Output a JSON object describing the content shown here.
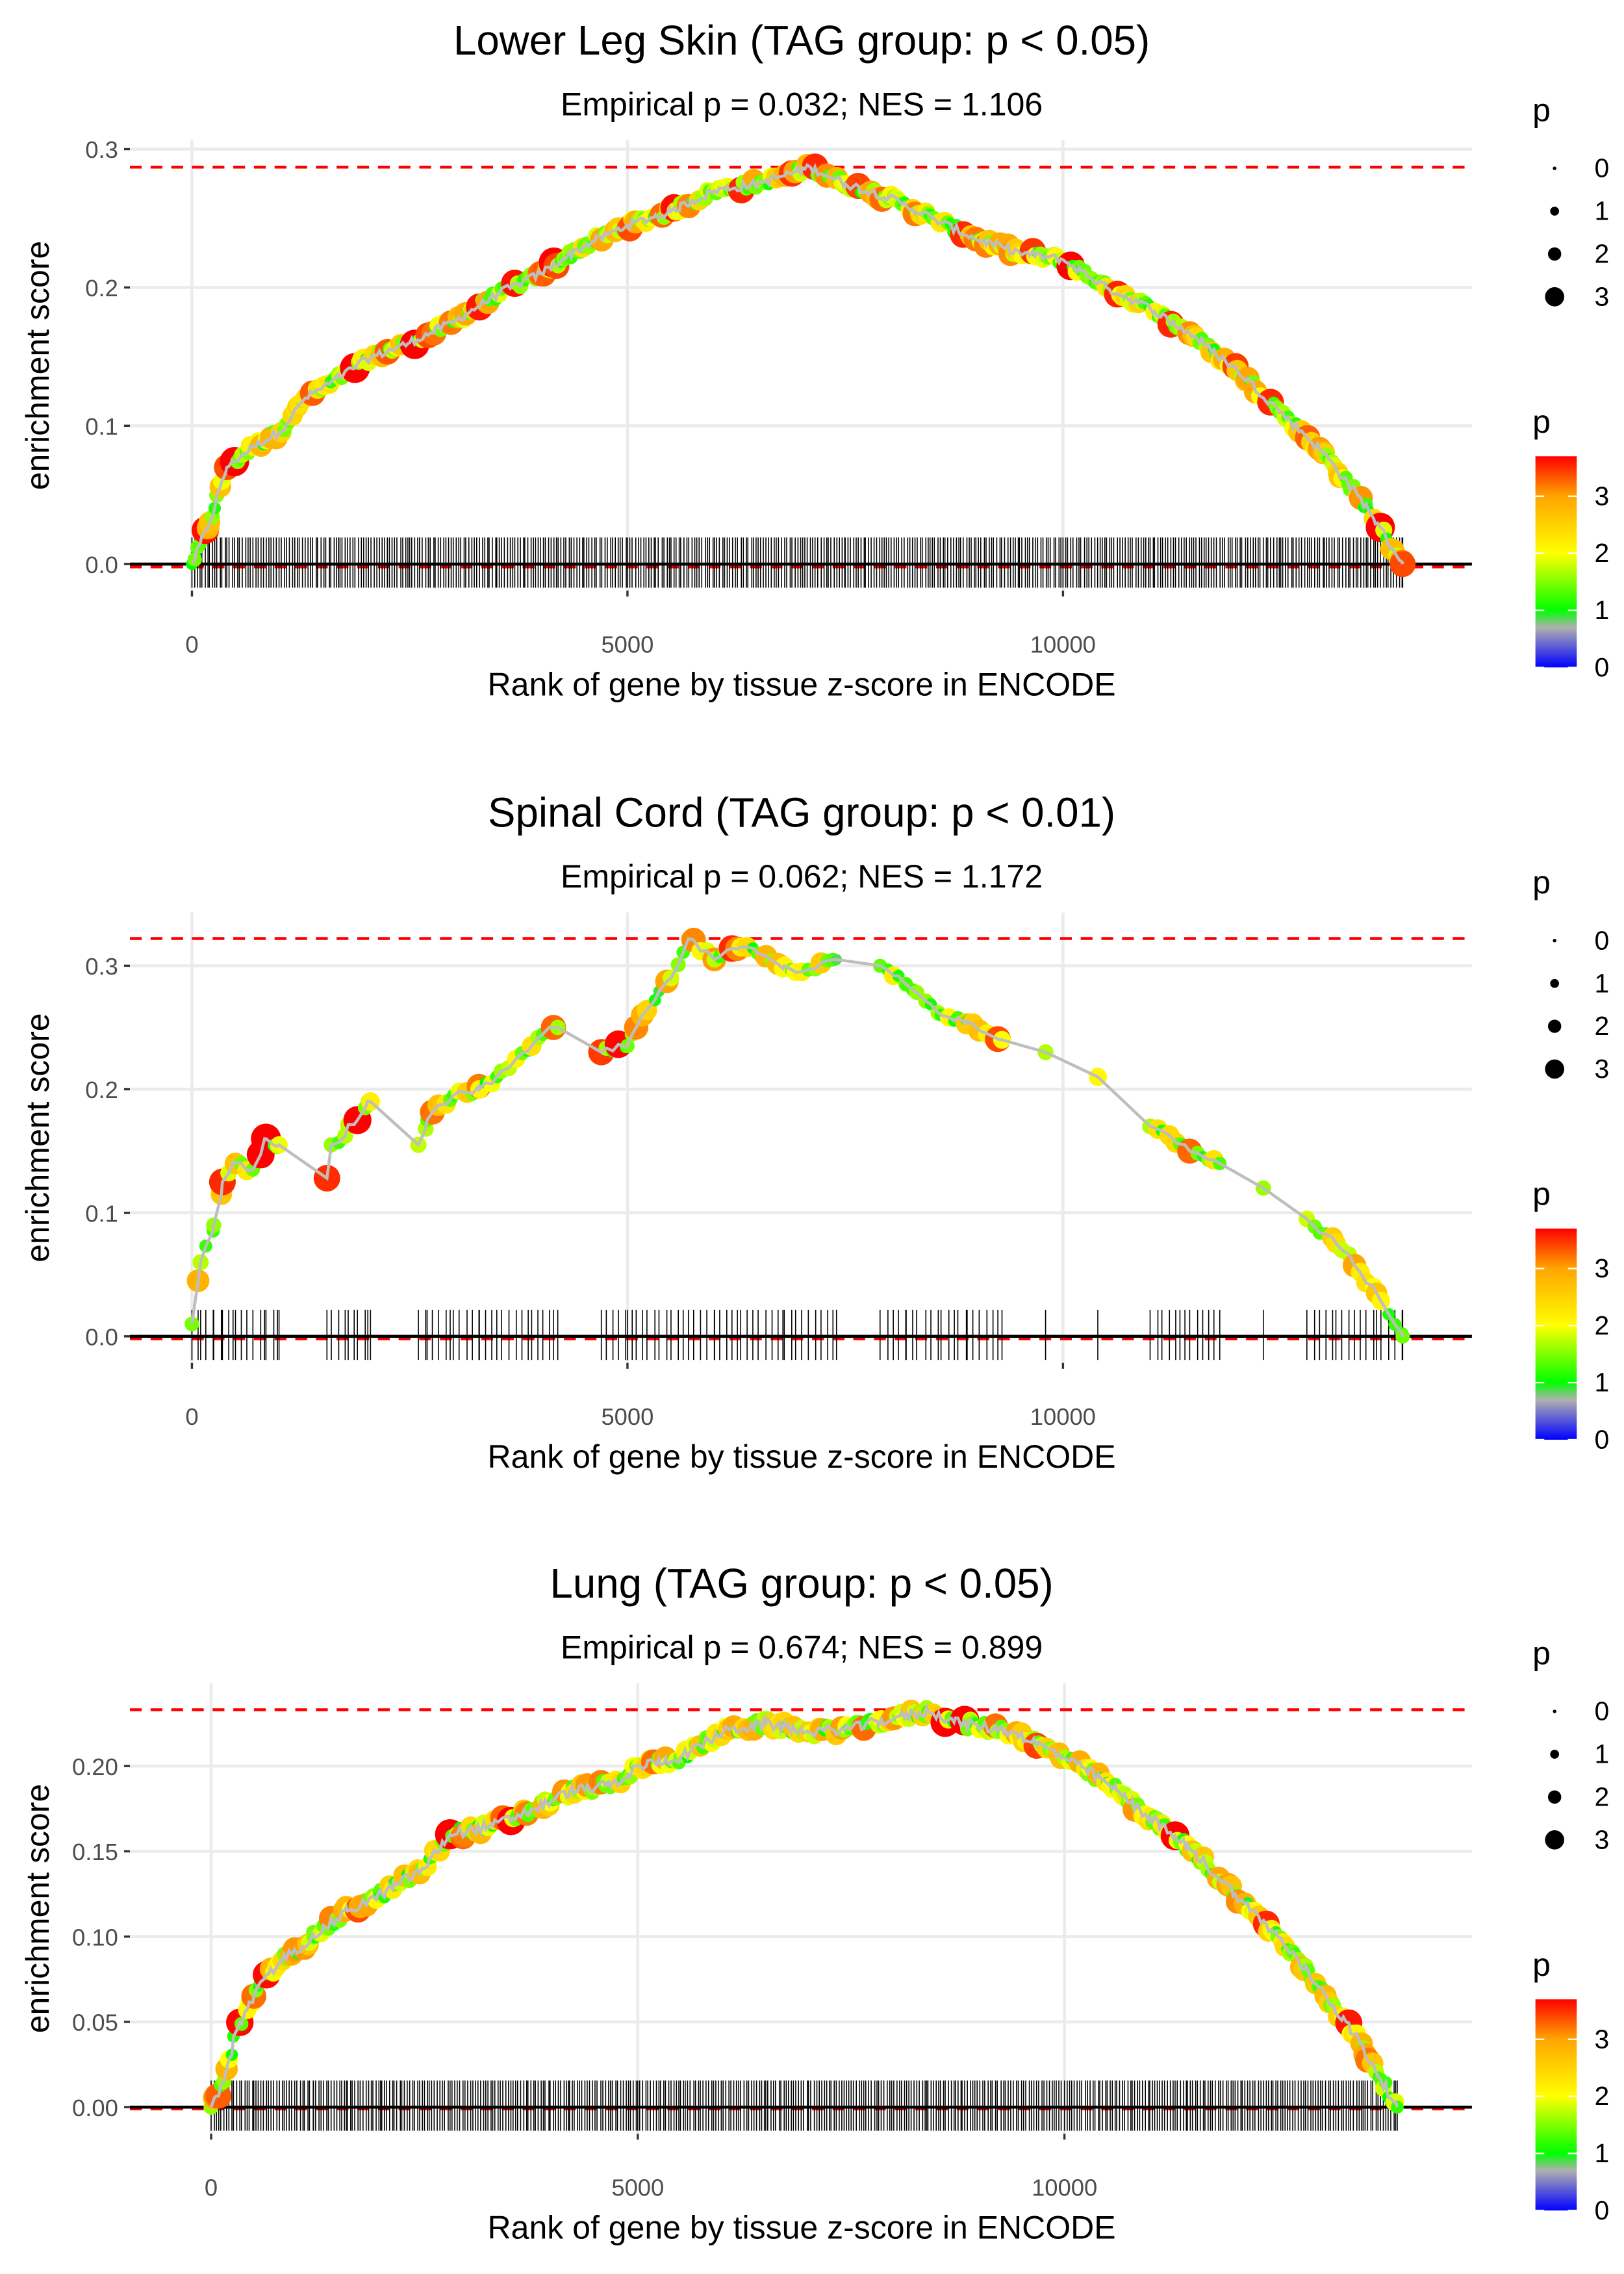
{
  "chart_data": [
    {
      "type": "scatter",
      "title": "Lower Leg Skin (TAG group: p < 0.05)",
      "subtitle": "Empirical p = 0.032; NES = 1.106",
      "xlabel": "Rank of gene by tissue z-score in ENCODE",
      "ylabel": "enrichment score",
      "xlim": [
        -700,
        14700
      ],
      "ylim": [
        -0.01,
        0.31
      ],
      "x_ticks": [
        0,
        5000,
        10000
      ],
      "x_tick_labels": [
        "0",
        "5000",
        "10000"
      ],
      "y_ticks": [
        0,
        0.1,
        0.2,
        0.3
      ],
      "y_tick_labels": [
        "0.0",
        "0.1",
        "0.2",
        "0.3"
      ],
      "max_es": 0.287,
      "min_es": -0.002,
      "curve": [
        [
          0,
          0
        ],
        [
          200,
          0.03
        ],
        [
          400,
          0.07
        ],
        [
          700,
          0.085
        ],
        [
          1000,
          0.095
        ],
        [
          1300,
          0.12
        ],
        [
          1700,
          0.135
        ],
        [
          2000,
          0.148
        ],
        [
          2500,
          0.16
        ],
        [
          3000,
          0.175
        ],
        [
          3500,
          0.195
        ],
        [
          4000,
          0.21
        ],
        [
          4500,
          0.23
        ],
        [
          5000,
          0.245
        ],
        [
          5500,
          0.255
        ],
        [
          6000,
          0.27
        ],
        [
          6500,
          0.275
        ],
        [
          7100,
          0.287
        ],
        [
          7500,
          0.275
        ],
        [
          8000,
          0.265
        ],
        [
          8500,
          0.25
        ],
        [
          9000,
          0.235
        ],
        [
          9500,
          0.225
        ],
        [
          10000,
          0.22
        ],
        [
          10500,
          0.2
        ],
        [
          11000,
          0.185
        ],
        [
          11500,
          0.165
        ],
        [
          12000,
          0.14
        ],
        [
          12500,
          0.11
        ],
        [
          13000,
          0.08
        ],
        [
          13500,
          0.04
        ],
        [
          13900,
          0.0
        ]
      ],
      "hit_step": 30,
      "gap_min": 100000
    },
    {
      "type": "scatter",
      "title": "Spinal Cord (TAG group: p < 0.01)",
      "subtitle": "Empirical p = 0.062; NES = 1.172",
      "xlabel": "Rank of gene by tissue z-score in ENCODE",
      "ylabel": "enrichment score",
      "xlim": [
        -700,
        14700
      ],
      "ylim": [
        -0.01,
        0.34
      ],
      "x_ticks": [
        0,
        5000,
        10000
      ],
      "x_tick_labels": [
        "0",
        "5000",
        "10000"
      ],
      "y_ticks": [
        0,
        0.1,
        0.2,
        0.3
      ],
      "y_tick_labels": [
        "0.0",
        "0.1",
        "0.2",
        "0.3"
      ],
      "max_es": 0.322,
      "min_es": -0.002,
      "curve": [
        [
          0,
          0.01
        ],
        [
          100,
          0.06
        ],
        [
          250,
          0.09
        ],
        [
          350,
          0.125
        ],
        [
          500,
          0.14
        ],
        [
          700,
          0.135
        ],
        [
          850,
          0.16
        ],
        [
          1000,
          0.155
        ],
        [
          1550,
          0.128
        ],
        [
          1600,
          0.155
        ],
        [
          1900,
          0.175
        ],
        [
          2050,
          0.19
        ],
        [
          2600,
          0.155
        ],
        [
          2700,
          0.175
        ],
        [
          3000,
          0.195
        ],
        [
          3300,
          0.2
        ],
        [
          3500,
          0.21
        ],
        [
          3900,
          0.235
        ],
        [
          4150,
          0.25
        ],
        [
          4200,
          0.25
        ],
        [
          4700,
          0.23
        ],
        [
          5000,
          0.235
        ],
        [
          5100,
          0.25
        ],
        [
          5500,
          0.29
        ],
        [
          5700,
          0.322
        ],
        [
          6000,
          0.305
        ],
        [
          6300,
          0.315
        ],
        [
          6500,
          0.31
        ],
        [
          6800,
          0.3
        ],
        [
          7000,
          0.295
        ],
        [
          7400,
          0.305
        ],
        [
          7900,
          0.3
        ],
        [
          8200,
          0.285
        ],
        [
          8600,
          0.26
        ],
        [
          8900,
          0.255
        ],
        [
          9300,
          0.24
        ],
        [
          9800,
          0.23
        ],
        [
          10400,
          0.21
        ],
        [
          11000,
          0.17
        ],
        [
          11400,
          0.155
        ],
        [
          11800,
          0.14
        ],
        [
          12300,
          0.12
        ],
        [
          12800,
          0.095
        ],
        [
          13200,
          0.07
        ],
        [
          13600,
          0.035
        ],
        [
          13900,
          0.0
        ]
      ],
      "hit_step": 70,
      "gap_min": 450
    },
    {
      "type": "scatter",
      "title": "Lung (TAG group: p < 0.05)",
      "subtitle": "Empirical p = 0.674; NES = 0.899",
      "xlabel": "Rank of gene by tissue z-score in ENCODE",
      "ylabel": "enrichment score",
      "xlim": [
        -700,
        14700
      ],
      "ylim": [
        -0.005,
        0.245
      ],
      "x_ticks": [
        0,
        5000,
        10000
      ],
      "x_tick_labels": [
        "0",
        "5000",
        "10000"
      ],
      "y_ticks": [
        0,
        0.05,
        0.1,
        0.15,
        0.2
      ],
      "y_tick_labels": [
        "0.00",
        "0.05",
        "0.10",
        "0.15",
        "0.20"
      ],
      "max_es": 0.233,
      "min_es": -0.001,
      "curve": [
        [
          0,
          0
        ],
        [
          150,
          0.015
        ],
        [
          300,
          0.045
        ],
        [
          500,
          0.065
        ],
        [
          800,
          0.085
        ],
        [
          1200,
          0.1
        ],
        [
          1600,
          0.115
        ],
        [
          2000,
          0.125
        ],
        [
          2500,
          0.14
        ],
        [
          2800,
          0.16
        ],
        [
          3300,
          0.165
        ],
        [
          3800,
          0.175
        ],
        [
          4200,
          0.185
        ],
        [
          4800,
          0.19
        ],
        [
          5000,
          0.2
        ],
        [
          5500,
          0.205
        ],
        [
          6000,
          0.22
        ],
        [
          6500,
          0.225
        ],
        [
          7000,
          0.22
        ],
        [
          7500,
          0.222
        ],
        [
          8000,
          0.228
        ],
        [
          8400,
          0.232
        ],
        [
          8800,
          0.225
        ],
        [
          9400,
          0.22
        ],
        [
          10000,
          0.205
        ],
        [
          10500,
          0.19
        ],
        [
          11000,
          0.17
        ],
        [
          11500,
          0.15
        ],
        [
          12000,
          0.125
        ],
        [
          12500,
          0.1
        ],
        [
          13000,
          0.07
        ],
        [
          13500,
          0.035
        ],
        [
          13900,
          0.0
        ]
      ],
      "hit_step": 30,
      "gap_min": 100000
    }
  ],
  "legend": {
    "size_title": "p",
    "size_labels": [
      "0",
      "1",
      "2",
      "3"
    ],
    "color_title": "p",
    "color_labels": [
      "3",
      "2",
      "1",
      "0"
    ],
    "colors": [
      "#0000ff",
      "#b0b0b0",
      "#00ff00",
      "#ffff00",
      "#ffa500",
      "#ff0000"
    ]
  }
}
